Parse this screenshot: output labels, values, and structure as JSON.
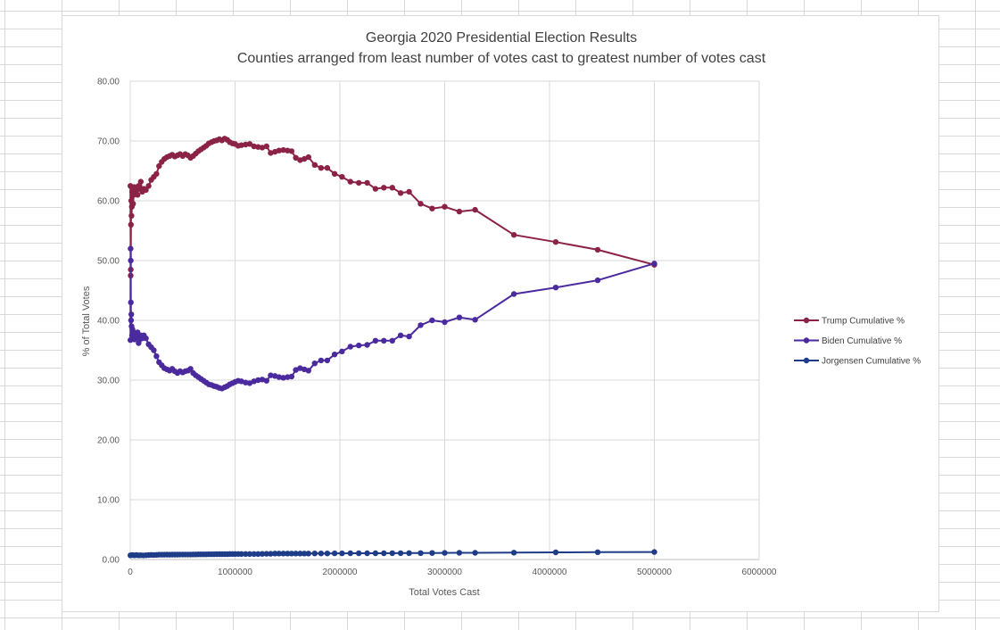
{
  "chart_data": {
    "type": "scatter",
    "title": "Georgia 2020 Presidential Election Results",
    "subtitle": "Counties arranged from least number of votes cast to greatest number of votes cast",
    "xlabel": "Total Votes Cast",
    "ylabel": "% of Total Votes",
    "xlim": [
      0,
      6000000
    ],
    "ylim": [
      0,
      80
    ],
    "x_ticks": [
      "0",
      "1000000",
      "2000000",
      "3000000",
      "4000000",
      "5000000",
      "6000000"
    ],
    "y_ticks": [
      "0.00",
      "10.00",
      "20.00",
      "30.00",
      "40.00",
      "50.00",
      "60.00",
      "70.00",
      "80.00"
    ],
    "grid": true,
    "legend_position": "right",
    "series": [
      {
        "name": "Trump Cumulative %",
        "color": "#8B2346",
        "points": [
          [
            2000,
            62.5
          ],
          [
            4000,
            47.5
          ],
          [
            5000,
            48.5
          ],
          [
            7000,
            56
          ],
          [
            9000,
            60
          ],
          [
            12000,
            57.5
          ],
          [
            15000,
            59
          ],
          [
            18000,
            61.5
          ],
          [
            22000,
            62
          ],
          [
            27000,
            59.5
          ],
          [
            33000,
            61
          ],
          [
            40000,
            62.3
          ],
          [
            50000,
            61.5
          ],
          [
            60000,
            62
          ],
          [
            70000,
            61
          ],
          [
            80000,
            62.5
          ],
          [
            90000,
            62
          ],
          [
            100000,
            63.2
          ],
          [
            115000,
            61.5
          ],
          [
            130000,
            62
          ],
          [
            150000,
            61.8
          ],
          [
            175000,
            62.5
          ],
          [
            200000,
            63.5
          ],
          [
            225000,
            64
          ],
          [
            250000,
            64.5
          ],
          [
            275000,
            65.8
          ],
          [
            300000,
            66.5
          ],
          [
            325000,
            67
          ],
          [
            350000,
            67.3
          ],
          [
            375000,
            67.5
          ],
          [
            400000,
            67.7
          ],
          [
            425000,
            67.4
          ],
          [
            450000,
            67.6
          ],
          [
            475000,
            67.8
          ],
          [
            500000,
            67.5
          ],
          [
            525000,
            67.8
          ],
          [
            550000,
            67.6
          ],
          [
            575000,
            67.2
          ],
          [
            600000,
            67.5
          ],
          [
            625000,
            67.9
          ],
          [
            650000,
            68.3
          ],
          [
            675000,
            68.6
          ],
          [
            700000,
            68.9
          ],
          [
            725000,
            69.2
          ],
          [
            750000,
            69.6
          ],
          [
            775000,
            69.8
          ],
          [
            800000,
            70
          ],
          [
            825000,
            70.1
          ],
          [
            850000,
            70.3
          ],
          [
            875000,
            70.1
          ],
          [
            900000,
            70.4
          ],
          [
            925000,
            70.2
          ],
          [
            950000,
            69.8
          ],
          [
            975000,
            69.6
          ],
          [
            1000000,
            69.5
          ],
          [
            1030000,
            69.2
          ],
          [
            1060000,
            69.3
          ],
          [
            1100000,
            69.4
          ],
          [
            1140000,
            69.5
          ],
          [
            1180000,
            69.1
          ],
          [
            1220000,
            69
          ],
          [
            1260000,
            68.9
          ],
          [
            1300000,
            69.1
          ],
          [
            1340000,
            68
          ],
          [
            1380000,
            68.2
          ],
          [
            1420000,
            68.4
          ],
          [
            1460000,
            68.5
          ],
          [
            1500000,
            68.4
          ],
          [
            1540000,
            68.3
          ],
          [
            1580000,
            67.2
          ],
          [
            1620000,
            66.8
          ],
          [
            1660000,
            67
          ],
          [
            1700000,
            67.3
          ],
          [
            1760000,
            66
          ],
          [
            1820000,
            65.5
          ],
          [
            1880000,
            65.5
          ],
          [
            1950000,
            64.5
          ],
          [
            2020000,
            64
          ],
          [
            2100000,
            63.2
          ],
          [
            2180000,
            63
          ],
          [
            2260000,
            63
          ],
          [
            2340000,
            62
          ],
          [
            2420000,
            62.2
          ],
          [
            2500000,
            62.2
          ],
          [
            2580000,
            61.3
          ],
          [
            2660000,
            61.5
          ],
          [
            2770000,
            59.5
          ],
          [
            2880000,
            58.7
          ],
          [
            3000000,
            59
          ],
          [
            3140000,
            58.2
          ],
          [
            3290000,
            58.5
          ],
          [
            3660000,
            54.3
          ],
          [
            4060000,
            53.1
          ],
          [
            4460000,
            51.8
          ],
          [
            5000000,
            49.3
          ]
        ]
      },
      {
        "name": "Biden Cumulative %",
        "color": "#4B2A9E",
        "points": [
          [
            2000,
            36.7
          ],
          [
            3000,
            52
          ],
          [
            5000,
            50
          ],
          [
            6000,
            43
          ],
          [
            8000,
            40
          ],
          [
            10000,
            41
          ],
          [
            13000,
            39
          ],
          [
            17000,
            37.5
          ],
          [
            21000,
            38.5
          ],
          [
            26000,
            37
          ],
          [
            32000,
            38
          ],
          [
            40000,
            36.8
          ],
          [
            50000,
            37.8
          ],
          [
            60000,
            37.3
          ],
          [
            70000,
            38
          ],
          [
            80000,
            36.2
          ],
          [
            90000,
            36.8
          ],
          [
            100000,
            37.5
          ],
          [
            115000,
            37
          ],
          [
            130000,
            37.5
          ],
          [
            150000,
            37
          ],
          [
            175000,
            36
          ],
          [
            200000,
            35.5
          ],
          [
            225000,
            35
          ],
          [
            250000,
            34
          ],
          [
            275000,
            33
          ],
          [
            300000,
            32.5
          ],
          [
            325000,
            32
          ],
          [
            350000,
            31.8
          ],
          [
            375000,
            31.6
          ],
          [
            400000,
            31.9
          ],
          [
            425000,
            31.5
          ],
          [
            450000,
            31.2
          ],
          [
            475000,
            31.5
          ],
          [
            500000,
            31.3
          ],
          [
            525000,
            31.5
          ],
          [
            550000,
            31.6
          ],
          [
            575000,
            31.9
          ],
          [
            600000,
            31.2
          ],
          [
            625000,
            30.8
          ],
          [
            650000,
            30.5
          ],
          [
            675000,
            30.2
          ],
          [
            700000,
            29.9
          ],
          [
            725000,
            29.6
          ],
          [
            750000,
            29.3
          ],
          [
            775000,
            29.2
          ],
          [
            800000,
            29
          ],
          [
            825000,
            28.9
          ],
          [
            850000,
            28.7
          ],
          [
            875000,
            28.6
          ],
          [
            900000,
            28.8
          ],
          [
            925000,
            29
          ],
          [
            950000,
            29.3
          ],
          [
            975000,
            29.5
          ],
          [
            1000000,
            29.7
          ],
          [
            1030000,
            29.9
          ],
          [
            1060000,
            29.8
          ],
          [
            1100000,
            29.6
          ],
          [
            1140000,
            29.5
          ],
          [
            1180000,
            29.8
          ],
          [
            1220000,
            30
          ],
          [
            1260000,
            30.1
          ],
          [
            1300000,
            29.9
          ],
          [
            1340000,
            30.8
          ],
          [
            1380000,
            30.7
          ],
          [
            1420000,
            30.5
          ],
          [
            1460000,
            30.4
          ],
          [
            1500000,
            30.5
          ],
          [
            1540000,
            30.6
          ],
          [
            1580000,
            31.7
          ],
          [
            1620000,
            32
          ],
          [
            1660000,
            31.8
          ],
          [
            1700000,
            31.6
          ],
          [
            1760000,
            32.8
          ],
          [
            1820000,
            33.3
          ],
          [
            1880000,
            33.3
          ],
          [
            1950000,
            34.3
          ],
          [
            2020000,
            34.8
          ],
          [
            2100000,
            35.6
          ],
          [
            2180000,
            35.8
          ],
          [
            2260000,
            35.9
          ],
          [
            2340000,
            36.6
          ],
          [
            2420000,
            36.6
          ],
          [
            2500000,
            36.6
          ],
          [
            2580000,
            37.5
          ],
          [
            2660000,
            37.3
          ],
          [
            2770000,
            39.2
          ],
          [
            2880000,
            40
          ],
          [
            3000000,
            39.7
          ],
          [
            3140000,
            40.5
          ],
          [
            3290000,
            40.1
          ],
          [
            3660000,
            44.4
          ],
          [
            4060000,
            45.5
          ],
          [
            4460000,
            46.7
          ],
          [
            5000000,
            49.5
          ]
        ]
      },
      {
        "name": "Jorgensen Cumulative %",
        "color": "#1F3C88",
        "points": [
          [
            2000,
            0.7
          ],
          [
            20000,
            0.75
          ],
          [
            40000,
            0.7
          ],
          [
            60000,
            0.75
          ],
          [
            80000,
            0.7
          ],
          [
            100000,
            0.72
          ],
          [
            125000,
            0.68
          ],
          [
            150000,
            0.72
          ],
          [
            175000,
            0.75
          ],
          [
            200000,
            0.78
          ],
          [
            225000,
            0.76
          ],
          [
            250000,
            0.78
          ],
          [
            275000,
            0.8
          ],
          [
            300000,
            0.8
          ],
          [
            325000,
            0.8
          ],
          [
            350000,
            0.82
          ],
          [
            375000,
            0.8
          ],
          [
            400000,
            0.82
          ],
          [
            425000,
            0.82
          ],
          [
            450000,
            0.82
          ],
          [
            475000,
            0.84
          ],
          [
            500000,
            0.84
          ],
          [
            525000,
            0.84
          ],
          [
            550000,
            0.84
          ],
          [
            575000,
            0.84
          ],
          [
            600000,
            0.85
          ],
          [
            625000,
            0.85
          ],
          [
            650000,
            0.86
          ],
          [
            675000,
            0.86
          ],
          [
            700000,
            0.87
          ],
          [
            725000,
            0.87
          ],
          [
            750000,
            0.88
          ],
          [
            775000,
            0.88
          ],
          [
            800000,
            0.88
          ],
          [
            825000,
            0.9
          ],
          [
            850000,
            0.9
          ],
          [
            875000,
            0.9
          ],
          [
            900000,
            0.9
          ],
          [
            925000,
            0.9
          ],
          [
            950000,
            0.92
          ],
          [
            975000,
            0.92
          ],
          [
            1000000,
            0.92
          ],
          [
            1030000,
            0.92
          ],
          [
            1060000,
            0.92
          ],
          [
            1100000,
            0.93
          ],
          [
            1140000,
            0.93
          ],
          [
            1180000,
            0.93
          ],
          [
            1220000,
            0.93
          ],
          [
            1260000,
            0.94
          ],
          [
            1300000,
            0.95
          ],
          [
            1340000,
            0.95
          ],
          [
            1380000,
            1
          ],
          [
            1420000,
            1
          ],
          [
            1460000,
            1
          ],
          [
            1500000,
            1
          ],
          [
            1540000,
            1
          ],
          [
            1580000,
            1
          ],
          [
            1620000,
            1
          ],
          [
            1660000,
            1
          ],
          [
            1700000,
            1
          ],
          [
            1760000,
            1.02
          ],
          [
            1820000,
            1.02
          ],
          [
            1880000,
            1.02
          ],
          [
            1950000,
            1.03
          ],
          [
            2020000,
            1.03
          ],
          [
            2100000,
            1.04
          ],
          [
            2180000,
            1.04
          ],
          [
            2260000,
            1.04
          ],
          [
            2340000,
            1.05
          ],
          [
            2420000,
            1.05
          ],
          [
            2500000,
            1.06
          ],
          [
            2580000,
            1.06
          ],
          [
            2660000,
            1.08
          ],
          [
            2770000,
            1.08
          ],
          [
            2880000,
            1.09
          ],
          [
            3000000,
            1.1
          ],
          [
            3140000,
            1.12
          ],
          [
            3290000,
            1.12
          ],
          [
            3660000,
            1.15
          ],
          [
            4060000,
            1.2
          ],
          [
            4460000,
            1.22
          ],
          [
            5000000,
            1.25
          ]
        ]
      }
    ]
  }
}
